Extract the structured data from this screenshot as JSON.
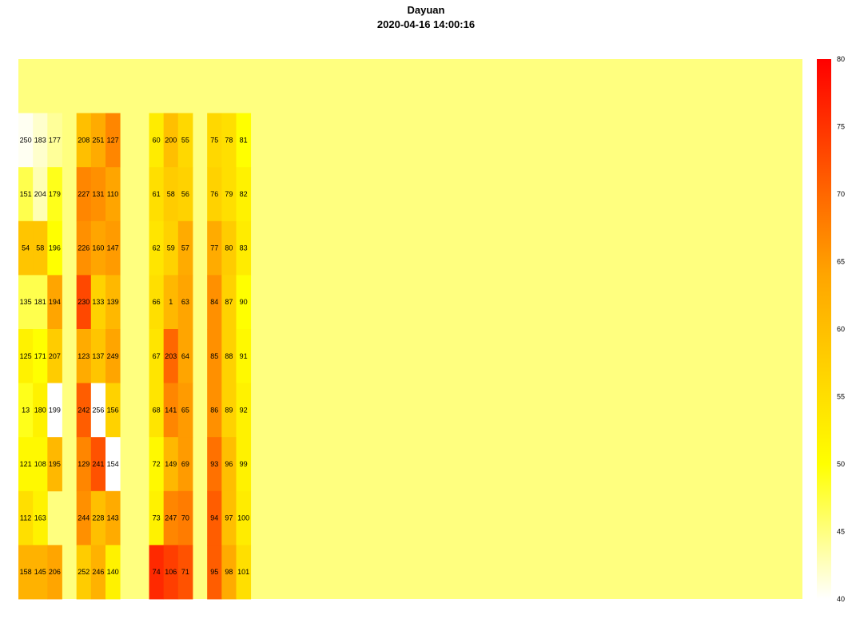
{
  "chart_data": {
    "type": "heatmap",
    "title": "Dayuan",
    "subtitle": "2020-04-16 14:00:16",
    "background_fill_color": "#FFFF7F",
    "colorscale": [
      "#FFFFFF",
      "#FFFF00",
      "#FFA500",
      "#FF0000"
    ],
    "zrange": [
      40,
      80
    ],
    "colorbar_ticks": [
      80,
      75,
      70,
      65,
      60,
      55,
      50,
      45,
      40
    ],
    "n_rows": 10,
    "n_cols": 54,
    "cells": [
      {
        "r": 1,
        "c": 0,
        "label": "250",
        "z": 40.5
      },
      {
        "r": 1,
        "c": 1,
        "label": "183",
        "z": 42
      },
      {
        "r": 1,
        "c": 2,
        "label": "177",
        "z": 44
      },
      {
        "r": 1,
        "c": 4,
        "label": "208",
        "z": 60
      },
      {
        "r": 1,
        "c": 5,
        "label": "251",
        "z": 63
      },
      {
        "r": 1,
        "c": 6,
        "label": "127",
        "z": 67
      },
      {
        "r": 1,
        "c": 9,
        "label": "60",
        "z": 53
      },
      {
        "r": 1,
        "c": 10,
        "label": "200",
        "z": 60
      },
      {
        "r": 1,
        "c": 11,
        "label": "55",
        "z": 56
      },
      {
        "r": 1,
        "c": 13,
        "label": "75",
        "z": 56
      },
      {
        "r": 1,
        "c": 14,
        "label": "78",
        "z": 55
      },
      {
        "r": 1,
        "c": 15,
        "label": "81",
        "z": 50
      },
      {
        "r": 2,
        "c": 0,
        "label": "151",
        "z": 47
      },
      {
        "r": 2,
        "c": 1,
        "label": "204",
        "z": 43
      },
      {
        "r": 2,
        "c": 2,
        "label": "179",
        "z": 49
      },
      {
        "r": 2,
        "c": 4,
        "label": "227",
        "z": 67
      },
      {
        "r": 2,
        "c": 5,
        "label": "131",
        "z": 66
      },
      {
        "r": 2,
        "c": 6,
        "label": "110",
        "z": 64
      },
      {
        "r": 2,
        "c": 9,
        "label": "61",
        "z": 55
      },
      {
        "r": 2,
        "c": 10,
        "label": "58",
        "z": 58
      },
      {
        "r": 2,
        "c": 11,
        "label": "56",
        "z": 57
      },
      {
        "r": 2,
        "c": 13,
        "label": "76",
        "z": 57
      },
      {
        "r": 2,
        "c": 14,
        "label": "79",
        "z": 55
      },
      {
        "r": 2,
        "c": 15,
        "label": "82",
        "z": 52
      },
      {
        "r": 3,
        "c": 0,
        "label": "54",
        "z": 59
      },
      {
        "r": 3,
        "c": 1,
        "label": "58",
        "z": 59
      },
      {
        "r": 3,
        "c": 2,
        "label": "196",
        "z": 50
      },
      {
        "r": 3,
        "c": 4,
        "label": "226",
        "z": 66
      },
      {
        "r": 3,
        "c": 5,
        "label": "160",
        "z": 64
      },
      {
        "r": 3,
        "c": 6,
        "label": "147",
        "z": 65
      },
      {
        "r": 3,
        "c": 9,
        "label": "62",
        "z": 54
      },
      {
        "r": 3,
        "c": 10,
        "label": "59",
        "z": 57
      },
      {
        "r": 3,
        "c": 11,
        "label": "57",
        "z": 63
      },
      {
        "r": 3,
        "c": 13,
        "label": "77",
        "z": 63
      },
      {
        "r": 3,
        "c": 14,
        "label": "80",
        "z": 58
      },
      {
        "r": 3,
        "c": 15,
        "label": "83",
        "z": 53
      },
      {
        "r": 4,
        "c": 0,
        "label": "135",
        "z": 47
      },
      {
        "r": 4,
        "c": 1,
        "label": "181",
        "z": 47
      },
      {
        "r": 4,
        "c": 2,
        "label": "194",
        "z": 64
      },
      {
        "r": 4,
        "c": 4,
        "label": "230",
        "z": 73
      },
      {
        "r": 4,
        "c": 5,
        "label": "133",
        "z": 57
      },
      {
        "r": 4,
        "c": 6,
        "label": "139",
        "z": 61
      },
      {
        "r": 4,
        "c": 9,
        "label": "66",
        "z": 55
      },
      {
        "r": 4,
        "c": 10,
        "label": "1",
        "z": 61
      },
      {
        "r": 4,
        "c": 11,
        "label": "63",
        "z": 64
      },
      {
        "r": 4,
        "c": 13,
        "label": "84",
        "z": 66
      },
      {
        "r": 4,
        "c": 14,
        "label": "87",
        "z": 57
      },
      {
        "r": 4,
        "c": 15,
        "label": "90",
        "z": 50
      },
      {
        "r": 5,
        "c": 0,
        "label": "125",
        "z": 52
      },
      {
        "r": 5,
        "c": 1,
        "label": "171",
        "z": 50
      },
      {
        "r": 5,
        "c": 2,
        "label": "207",
        "z": 58
      },
      {
        "r": 5,
        "c": 4,
        "label": "123",
        "z": 63
      },
      {
        "r": 5,
        "c": 5,
        "label": "137",
        "z": 59
      },
      {
        "r": 5,
        "c": 6,
        "label": "249",
        "z": 64
      },
      {
        "r": 5,
        "c": 9,
        "label": "67",
        "z": 54
      },
      {
        "r": 5,
        "c": 10,
        "label": "203",
        "z": 70
      },
      {
        "r": 5,
        "c": 11,
        "label": "64",
        "z": 64
      },
      {
        "r": 5,
        "c": 13,
        "label": "85",
        "z": 66
      },
      {
        "r": 5,
        "c": 14,
        "label": "88",
        "z": 57
      },
      {
        "r": 5,
        "c": 15,
        "label": "91",
        "z": 51
      },
      {
        "r": 6,
        "c": 0,
        "label": "13",
        "z": 49
      },
      {
        "r": 6,
        "c": 1,
        "label": "180",
        "z": 52
      },
      {
        "r": 6,
        "c": 2,
        "label": "199",
        "z": 40
      },
      {
        "r": 6,
        "c": 4,
        "label": "242",
        "z": 71
      },
      {
        "r": 6,
        "c": 5,
        "label": "256",
        "z": 40
      },
      {
        "r": 6,
        "c": 6,
        "label": "156",
        "z": 57
      },
      {
        "r": 6,
        "c": 9,
        "label": "68",
        "z": 54
      },
      {
        "r": 6,
        "c": 10,
        "label": "141",
        "z": 67
      },
      {
        "r": 6,
        "c": 11,
        "label": "65",
        "z": 65
      },
      {
        "r": 6,
        "c": 13,
        "label": "86",
        "z": 66
      },
      {
        "r": 6,
        "c": 14,
        "label": "89",
        "z": 57
      },
      {
        "r": 6,
        "c": 15,
        "label": "92",
        "z": 52
      },
      {
        "r": 7,
        "c": 0,
        "label": "121",
        "z": 51
      },
      {
        "r": 7,
        "c": 1,
        "label": "108",
        "z": 51
      },
      {
        "r": 7,
        "c": 2,
        "label": "195",
        "z": 61
      },
      {
        "r": 7,
        "c": 4,
        "label": "129",
        "z": 67
      },
      {
        "r": 7,
        "c": 5,
        "label": "241",
        "z": 72
      },
      {
        "r": 7,
        "c": 6,
        "label": "154",
        "z": 40
      },
      {
        "r": 7,
        "c": 9,
        "label": "72",
        "z": 51
      },
      {
        "r": 7,
        "c": 10,
        "label": "149",
        "z": 61
      },
      {
        "r": 7,
        "c": 11,
        "label": "69",
        "z": 65
      },
      {
        "r": 7,
        "c": 13,
        "label": "93",
        "z": 69
      },
      {
        "r": 7,
        "c": 14,
        "label": "96",
        "z": 60
      },
      {
        "r": 7,
        "c": 15,
        "label": "99",
        "z": 52
      },
      {
        "r": 8,
        "c": 0,
        "label": "112",
        "z": 55
      },
      {
        "r": 8,
        "c": 1,
        "label": "163",
        "z": 52
      },
      {
        "r": 8,
        "c": 4,
        "label": "244",
        "z": 66
      },
      {
        "r": 8,
        "c": 5,
        "label": "228",
        "z": 60
      },
      {
        "r": 8,
        "c": 6,
        "label": "143",
        "z": 63
      },
      {
        "r": 8,
        "c": 9,
        "label": "73",
        "z": 52
      },
      {
        "r": 8,
        "c": 10,
        "label": "247",
        "z": 67
      },
      {
        "r": 8,
        "c": 11,
        "label": "70",
        "z": 68
      },
      {
        "r": 8,
        "c": 13,
        "label": "94",
        "z": 71
      },
      {
        "r": 8,
        "c": 14,
        "label": "97",
        "z": 60
      },
      {
        "r": 8,
        "c": 15,
        "label": "100",
        "z": 53
      },
      {
        "r": 9,
        "c": 0,
        "label": "158",
        "z": 62
      },
      {
        "r": 9,
        "c": 1,
        "label": "145",
        "z": 62
      },
      {
        "r": 9,
        "c": 2,
        "label": "206",
        "z": 64
      },
      {
        "r": 9,
        "c": 4,
        "label": "252",
        "z": 58
      },
      {
        "r": 9,
        "c": 5,
        "label": "246",
        "z": 62
      },
      {
        "r": 9,
        "c": 6,
        "label": "140",
        "z": 52
      },
      {
        "r": 9,
        "c": 9,
        "label": "74",
        "z": 76
      },
      {
        "r": 9,
        "c": 10,
        "label": "106",
        "z": 74
      },
      {
        "r": 9,
        "c": 11,
        "label": "71",
        "z": 72
      },
      {
        "r": 9,
        "c": 13,
        "label": "95",
        "z": 71
      },
      {
        "r": 9,
        "c": 14,
        "label": "98",
        "z": 63
      },
      {
        "r": 9,
        "c": 15,
        "label": "101",
        "z": 55
      }
    ]
  }
}
